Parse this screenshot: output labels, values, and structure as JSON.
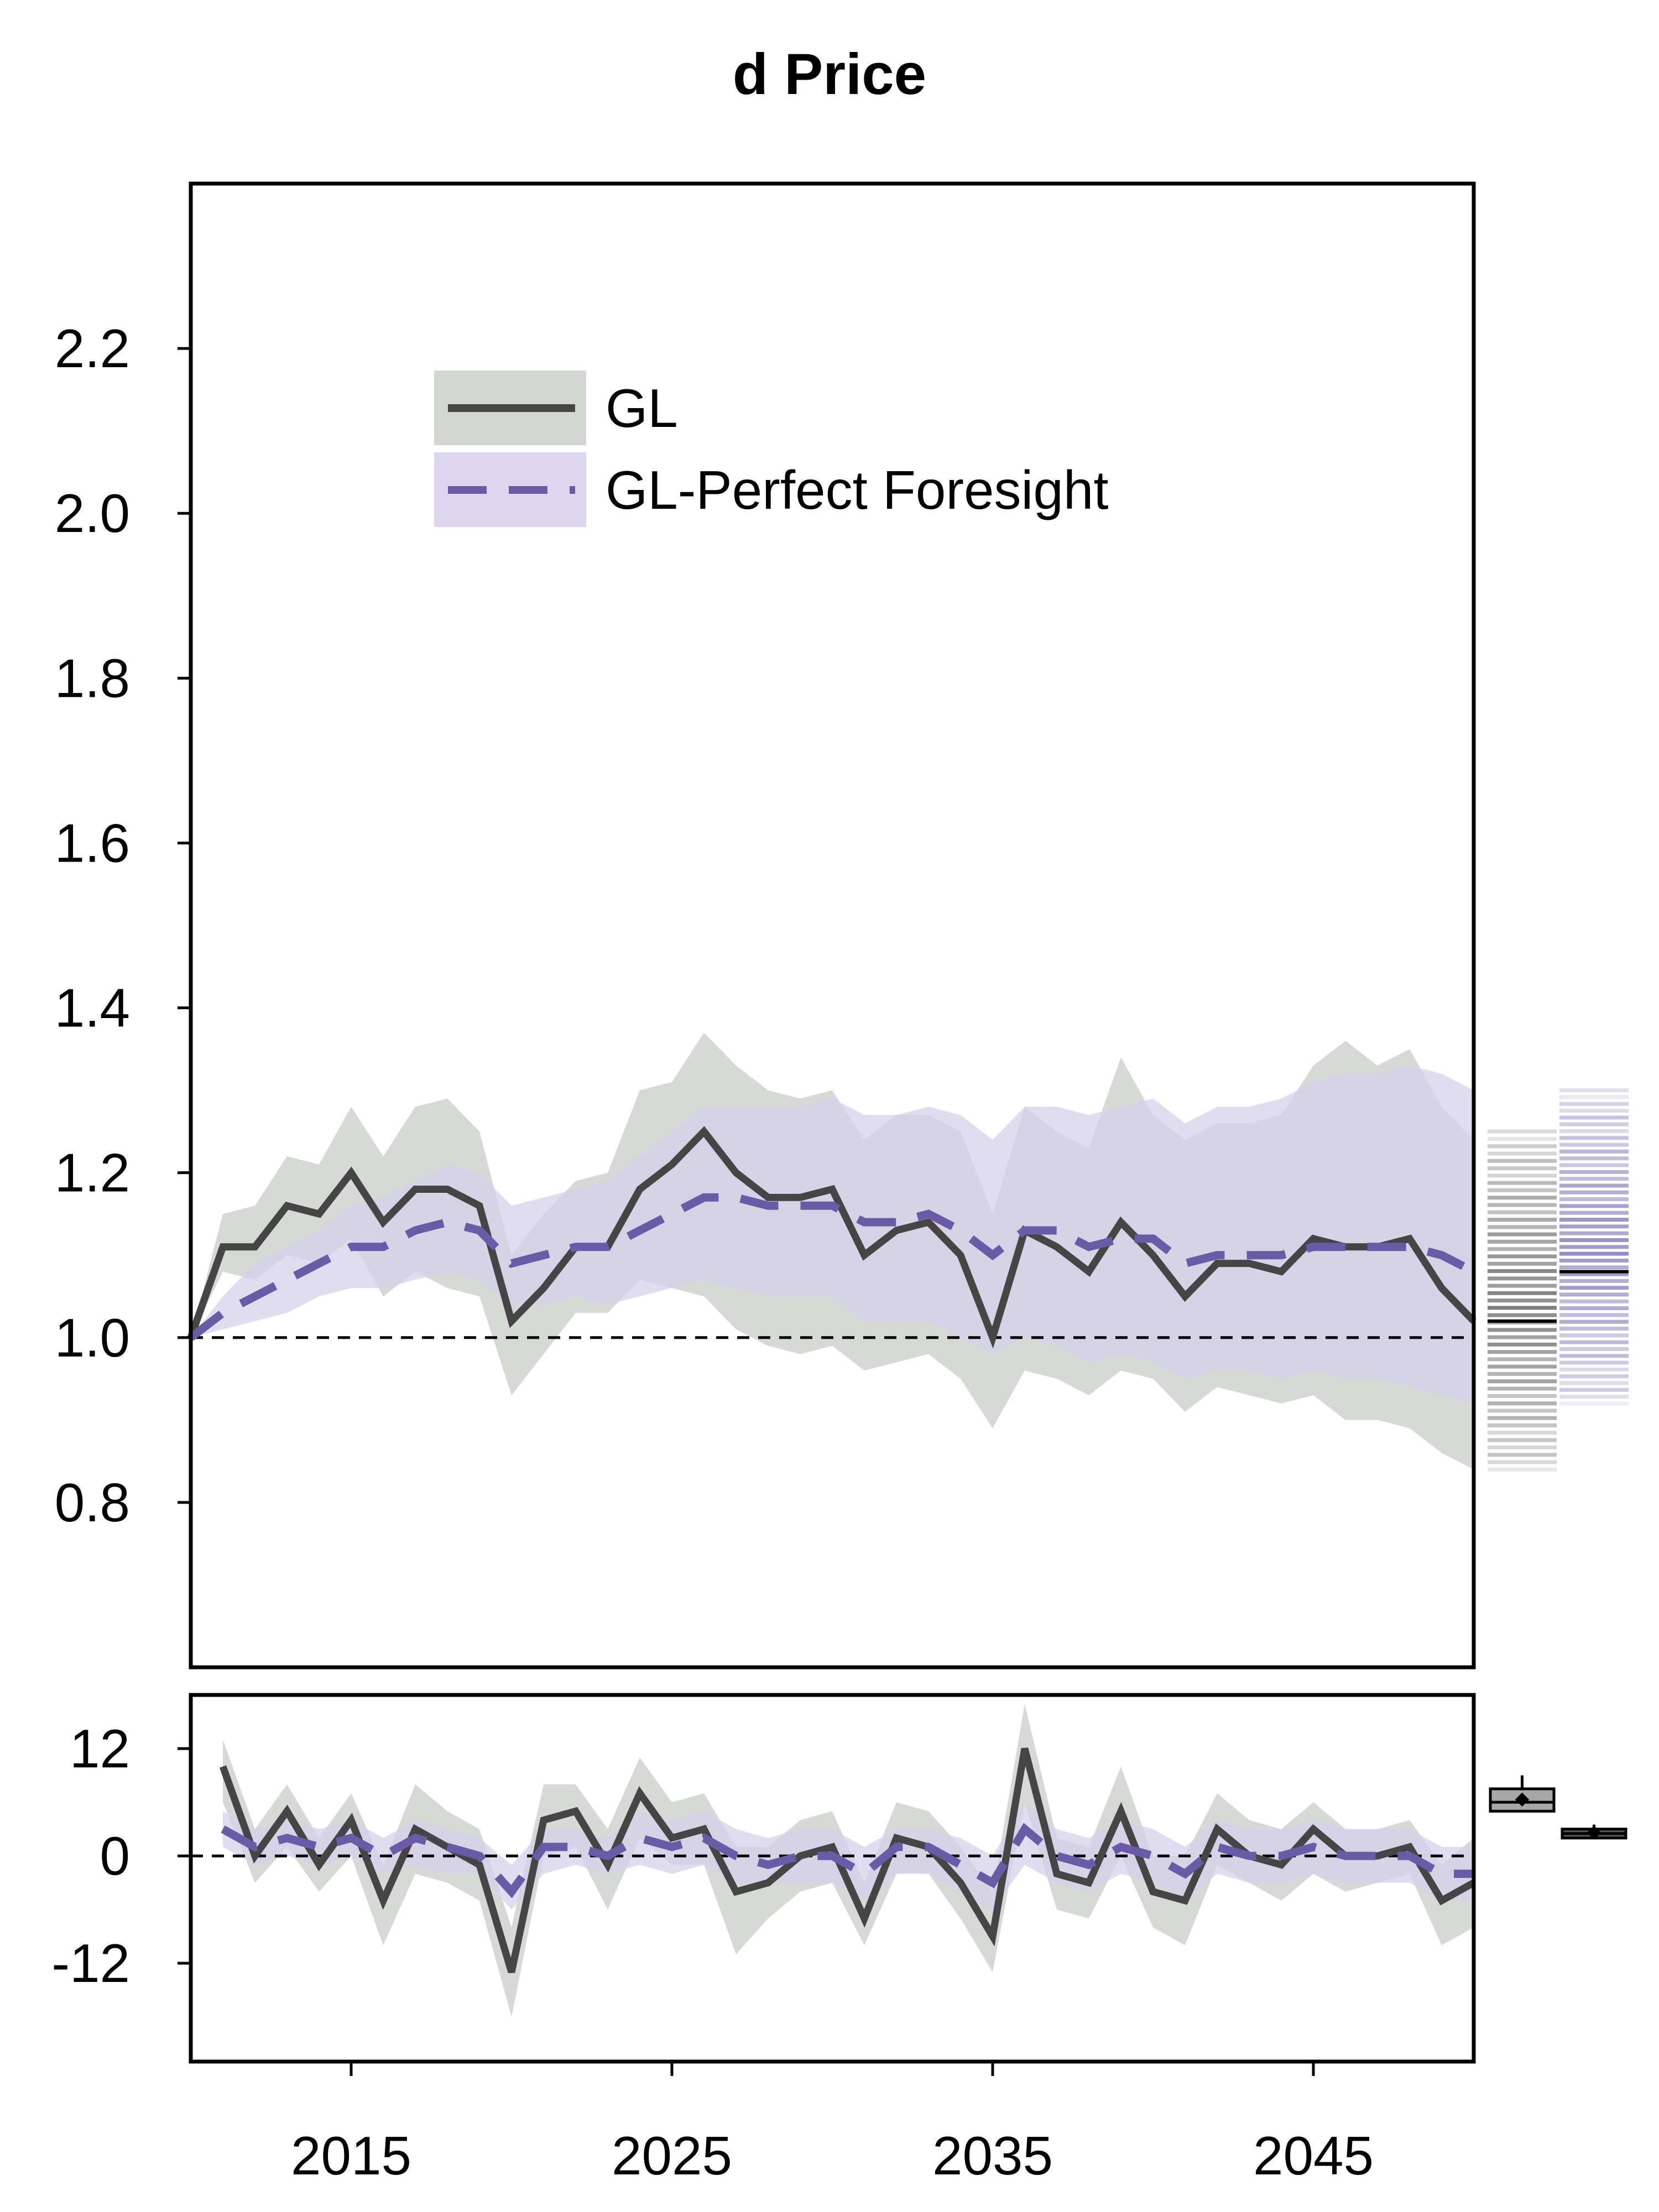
{
  "chart_data": {
    "type": "line",
    "title": "d Price",
    "xlabel": "",
    "x": [
      2010,
      2011,
      2012,
      2013,
      2014,
      2015,
      2016,
      2017,
      2018,
      2019,
      2020,
      2021,
      2022,
      2023,
      2024,
      2025,
      2026,
      2027,
      2028,
      2029,
      2030,
      2031,
      2032,
      2033,
      2034,
      2035,
      2036,
      2037,
      2038,
      2039,
      2040,
      2041,
      2042,
      2043,
      2044,
      2045,
      2046,
      2047,
      2048,
      2049,
      2050
    ],
    "x_ticks": [
      {
        "value": 2015,
        "label": "2015"
      },
      {
        "value": 2025,
        "label": "2025"
      },
      {
        "value": 2035,
        "label": "2035"
      },
      {
        "value": 2045,
        "label": "2045"
      }
    ],
    "xlim": [
      2010,
      2050
    ],
    "legend": {
      "position": "top-left",
      "entries": [
        {
          "label": "GL",
          "series": 0
        },
        {
          "label": "GL-Perfect Foresight",
          "series": 1
        }
      ]
    },
    "panels": [
      {
        "name": "levels",
        "ylabel": "",
        "ylim": [
          0.6,
          2.4
        ],
        "y_ticks": [
          {
            "value": 0.8,
            "label": "0.8"
          },
          {
            "value": 1.0,
            "label": "1.0"
          },
          {
            "value": 1.2,
            "label": "1.2"
          },
          {
            "value": 1.4,
            "label": "1.4"
          },
          {
            "value": 1.6,
            "label": "1.6"
          },
          {
            "value": 1.8,
            "label": "1.8"
          },
          {
            "value": 2.0,
            "label": "2.0"
          },
          {
            "value": 2.2,
            "label": "2.2"
          }
        ],
        "reference_line": 1.0,
        "series": [
          {
            "name": "GL",
            "color": "#454545",
            "band_color": "#c8cbc8",
            "style": "solid",
            "values": [
              1.0,
              1.11,
              1.11,
              1.16,
              1.15,
              1.2,
              1.14,
              1.18,
              1.18,
              1.16,
              1.02,
              1.06,
              1.11,
              1.11,
              1.18,
              1.21,
              1.25,
              1.2,
              1.17,
              1.17,
              1.18,
              1.1,
              1.13,
              1.14,
              1.1,
              1.0,
              1.13,
              1.11,
              1.08,
              1.14,
              1.1,
              1.05,
              1.09,
              1.09,
              1.08,
              1.12,
              1.11,
              1.11,
              1.12,
              1.06,
              1.02
            ],
            "lower": [
              1.0,
              1.08,
              1.07,
              1.1,
              1.09,
              1.12,
              1.05,
              1.08,
              1.06,
              1.05,
              0.93,
              0.98,
              1.03,
              1.03,
              1.07,
              1.06,
              1.05,
              1.01,
              0.99,
              0.98,
              0.99,
              0.96,
              0.97,
              0.98,
              0.95,
              0.89,
              0.96,
              0.95,
              0.93,
              0.96,
              0.95,
              0.91,
              0.94,
              0.93,
              0.92,
              0.93,
              0.9,
              0.9,
              0.89,
              0.86,
              0.84
            ],
            "upper": [
              1.0,
              1.15,
              1.16,
              1.22,
              1.21,
              1.28,
              1.22,
              1.28,
              1.29,
              1.25,
              1.1,
              1.15,
              1.19,
              1.2,
              1.3,
              1.31,
              1.37,
              1.33,
              1.3,
              1.29,
              1.3,
              1.24,
              1.27,
              1.27,
              1.25,
              1.15,
              1.28,
              1.25,
              1.23,
              1.34,
              1.27,
              1.24,
              1.26,
              1.26,
              1.27,
              1.33,
              1.36,
              1.33,
              1.35,
              1.28,
              1.24
            ]
          },
          {
            "name": "GL-Perfect Foresight",
            "color": "#6a5ba6",
            "band_color": "#d6d0ec",
            "style": "dashed",
            "values": [
              1.0,
              1.03,
              1.05,
              1.07,
              1.09,
              1.11,
              1.11,
              1.13,
              1.14,
              1.13,
              1.09,
              1.1,
              1.11,
              1.11,
              1.13,
              1.15,
              1.17,
              1.17,
              1.16,
              1.16,
              1.16,
              1.14,
              1.14,
              1.15,
              1.13,
              1.1,
              1.13,
              1.13,
              1.11,
              1.12,
              1.12,
              1.09,
              1.1,
              1.1,
              1.1,
              1.11,
              1.11,
              1.11,
              1.11,
              1.1,
              1.08
            ],
            "lower": [
              1.0,
              1.01,
              1.02,
              1.03,
              1.05,
              1.06,
              1.06,
              1.07,
              1.08,
              1.07,
              1.04,
              1.04,
              1.05,
              1.04,
              1.05,
              1.06,
              1.07,
              1.06,
              1.05,
              1.05,
              1.05,
              1.02,
              1.02,
              1.02,
              1.0,
              0.98,
              1.0,
              0.99,
              0.97,
              0.98,
              0.97,
              0.95,
              0.96,
              0.96,
              0.95,
              0.96,
              0.95,
              0.95,
              0.94,
              0.93,
              0.92
            ],
            "upper": [
              1.0,
              1.05,
              1.09,
              1.11,
              1.13,
              1.16,
              1.17,
              1.19,
              1.21,
              1.2,
              1.16,
              1.17,
              1.18,
              1.19,
              1.22,
              1.25,
              1.28,
              1.28,
              1.28,
              1.28,
              1.29,
              1.27,
              1.27,
              1.28,
              1.27,
              1.24,
              1.28,
              1.28,
              1.27,
              1.28,
              1.29,
              1.26,
              1.28,
              1.28,
              1.29,
              1.31,
              1.32,
              1.32,
              1.33,
              1.32,
              1.3
            ]
          }
        ],
        "side_distributions": [
          {
            "series": 0,
            "min": 0.84,
            "max": 1.25,
            "median": 1.02,
            "color": "#4a4a4a"
          },
          {
            "series": 1,
            "min": 0.92,
            "max": 1.3,
            "median": 1.08,
            "color": "#6a5ba6"
          }
        ]
      },
      {
        "name": "changes",
        "ylabel": "",
        "ylim": [
          -23,
          18
        ],
        "y_ticks": [
          {
            "value": 12,
            "label": "12"
          },
          {
            "value": 0,
            "label": "0"
          },
          {
            "value": -12,
            "label": "-12"
          }
        ],
        "reference_line": 0,
        "series": [
          {
            "name": "GL",
            "color": "#454545",
            "band_color": "#c8cbc8",
            "style": "solid",
            "values": [
              null,
              10,
              0,
              5,
              -1,
              4,
              -5,
              3,
              1,
              -1,
              -13,
              4,
              5,
              -1,
              7,
              2,
              3,
              -4,
              -3,
              0,
              1,
              -7,
              2,
              1,
              -3,
              -9,
              12,
              -2,
              -3,
              5,
              -4,
              -5,
              3,
              0,
              -1,
              3,
              0,
              0,
              1,
              -5,
              -3
            ],
            "lower": [
              null,
              6,
              -3,
              1,
              -4,
              0,
              -10,
              -2,
              -3,
              -5,
              -18,
              0,
              1,
              -6,
              2,
              -1,
              -1,
              -11,
              -7,
              -4,
              -3,
              -10,
              -2,
              -2,
              -7,
              -13,
              6,
              -6,
              -7,
              0,
              -8,
              -10,
              -1,
              -3,
              -5,
              -2,
              -4,
              -3,
              -2,
              -10,
              -8
            ],
            "upper": [
              null,
              13,
              3,
              8,
              2,
              7,
              -1,
              8,
              5,
              3,
              -8,
              8,
              8,
              3,
              11,
              6,
              7,
              1,
              1,
              4,
              5,
              -3,
              6,
              5,
              1,
              -4,
              17,
              2,
              1,
              10,
              0,
              0,
              7,
              4,
              3,
              6,
              3,
              3,
              4,
              -1,
              2
            ]
          },
          {
            "name": "GL-Perfect Foresight",
            "color": "#6a5ba6",
            "band_color": "#d6d0ec",
            "style": "dashed",
            "values": [
              null,
              3,
              1,
              2,
              1,
              2,
              0,
              2,
              1,
              0,
              -4,
              1,
              1,
              0,
              2,
              1,
              2,
              0,
              -1,
              0,
              0,
              -2,
              1,
              1,
              -1,
              -3,
              3,
              0,
              -1,
              1,
              0,
              -2,
              1,
              0,
              0,
              1,
              0,
              0,
              0,
              -2,
              -2
            ],
            "lower": [
              null,
              1,
              -1,
              0,
              -1,
              0,
              -2,
              -1,
              -2,
              -2,
              -6,
              -2,
              -1,
              -2,
              -1,
              -2,
              -1,
              -3,
              -3,
              -3,
              -3,
              -5,
              -2,
              -2,
              -4,
              -6,
              -1,
              -3,
              -4,
              -2,
              -3,
              -5,
              -2,
              -3,
              -3,
              -2,
              -3,
              -3,
              -3,
              -5,
              -5
            ],
            "upper": [
              null,
              5,
              3,
              4,
              3,
              4,
              2,
              4,
              3,
              2,
              -1,
              3,
              3,
              2,
              5,
              4,
              5,
              3,
              2,
              3,
              3,
              1,
              3,
              3,
              2,
              0,
              6,
              3,
              2,
              4,
              3,
              1,
              4,
              3,
              3,
              4,
              3,
              3,
              3,
              1,
              1
            ]
          }
        ],
        "side_boxplots": [
          {
            "series": 0,
            "q1": 5,
            "median": 6,
            "q3": 7.5,
            "whisker_low": 5,
            "whisker_high": 9,
            "mean": 6.3,
            "color": "#a7a7a7"
          },
          {
            "series": 1,
            "q1": 2,
            "median": 2.5,
            "q3": 3,
            "whisker_low": 2,
            "whisker_high": 3.5,
            "mean": 2.6,
            "color": "#555555"
          }
        ]
      }
    ]
  }
}
